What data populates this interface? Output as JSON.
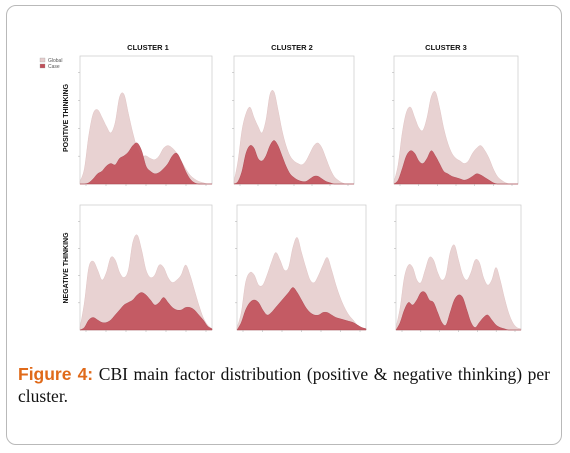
{
  "figure": {
    "caption_label": "Figure 4:",
    "caption_text": "CBI main factor distribution (positive & negative thinking) per cluster."
  },
  "chart_data": {
    "type": "area",
    "columns": [
      "CLUSTER 1",
      "CLUSTER 2",
      "CLUSTER 3"
    ],
    "rows": [
      "POSITIVE THINKING",
      "NEGATIVE THINKING"
    ],
    "legend": {
      "position": "top-left",
      "entries": [
        "Global",
        "Case"
      ]
    },
    "colors": {
      "global": "#e6cdcd",
      "case": "#c0505a",
      "grid": "#d0d0d0"
    },
    "x": [
      0,
      1,
      2,
      3,
      4,
      5,
      6,
      7,
      8,
      9,
      10,
      11,
      12,
      13,
      14,
      15,
      16,
      17,
      18,
      19,
      20,
      21,
      22,
      23,
      24,
      25,
      26,
      27,
      28,
      29,
      30
    ],
    "ylim": [
      0,
      100
    ],
    "panels": [
      {
        "row": "POSITIVE THINKING",
        "column": "CLUSTER 1",
        "global": [
          2,
          12,
          38,
          55,
          58,
          52,
          45,
          40,
          48,
          68,
          70,
          55,
          40,
          28,
          22,
          22,
          20,
          19,
          22,
          28,
          30,
          28,
          24,
          18,
          12,
          7,
          4,
          2,
          1,
          0,
          0
        ],
        "case": [
          0,
          0,
          1,
          4,
          8,
          10,
          14,
          16,
          15,
          20,
          22,
          25,
          30,
          32,
          26,
          14,
          10,
          8,
          9,
          12,
          16,
          22,
          24,
          18,
          10,
          4,
          1,
          0,
          0,
          0,
          0
        ]
      },
      {
        "row": "POSITIVE THINKING",
        "column": "CLUSTER 2",
        "global": [
          2,
          18,
          42,
          55,
          60,
          52,
          45,
          40,
          50,
          70,
          72,
          58,
          42,
          30,
          22,
          18,
          16,
          15,
          18,
          24,
          30,
          32,
          28,
          20,
          12,
          6,
          3,
          1,
          0,
          0,
          0
        ],
        "case": [
          0,
          2,
          10,
          24,
          30,
          28,
          20,
          18,
          22,
          30,
          34,
          30,
          22,
          14,
          8,
          5,
          3,
          2,
          2,
          4,
          6,
          6,
          4,
          2,
          1,
          0,
          0,
          0,
          0,
          0,
          0
        ]
      },
      {
        "row": "POSITIVE THINKING",
        "column": "CLUSTER 3",
        "global": [
          2,
          15,
          40,
          56,
          60,
          52,
          44,
          42,
          52,
          68,
          72,
          60,
          44,
          32,
          24,
          20,
          18,
          16,
          18,
          24,
          28,
          30,
          26,
          20,
          12,
          6,
          3,
          1,
          0,
          0,
          0
        ],
        "case": [
          0,
          3,
          12,
          22,
          26,
          24,
          18,
          16,
          20,
          26,
          22,
          16,
          10,
          8,
          6,
          5,
          4,
          3,
          4,
          6,
          8,
          7,
          5,
          3,
          1,
          0,
          0,
          0,
          0,
          0,
          0
        ]
      },
      {
        "row": "NEGATIVE THINKING",
        "column": "CLUSTER 1",
        "global": [
          2,
          22,
          50,
          55,
          48,
          40,
          46,
          58,
          56,
          46,
          42,
          48,
          70,
          76,
          64,
          48,
          42,
          44,
          52,
          50,
          42,
          38,
          40,
          44,
          52,
          44,
          32,
          20,
          10,
          4,
          1
        ],
        "case": [
          0,
          2,
          8,
          10,
          8,
          6,
          6,
          8,
          12,
          16,
          20,
          22,
          24,
          28,
          30,
          28,
          24,
          20,
          22,
          26,
          22,
          18,
          16,
          16,
          18,
          18,
          16,
          12,
          8,
          3,
          1
        ]
      },
      {
        "row": "NEGATIVE THINKING",
        "column": "CLUSTER 2",
        "global": [
          2,
          14,
          38,
          46,
          44,
          36,
          36,
          44,
          54,
          62,
          56,
          48,
          50,
          66,
          74,
          62,
          50,
          40,
          38,
          44,
          52,
          58,
          48,
          36,
          26,
          18,
          12,
          8,
          4,
          2,
          1
        ],
        "case": [
          0,
          6,
          16,
          22,
          24,
          22,
          16,
          12,
          14,
          18,
          22,
          26,
          30,
          34,
          30,
          24,
          18,
          14,
          12,
          12,
          14,
          14,
          12,
          10,
          9,
          8,
          7,
          6,
          4,
          2,
          1
        ]
      },
      {
        "row": "NEGATIVE THINKING",
        "column": "CLUSTER 3",
        "global": [
          2,
          18,
          42,
          52,
          50,
          40,
          38,
          48,
          58,
          56,
          46,
          40,
          44,
          62,
          68,
          56,
          44,
          40,
          46,
          56,
          54,
          42,
          36,
          40,
          50,
          40,
          26,
          14,
          6,
          2,
          1
        ],
        "case": [
          0,
          6,
          16,
          22,
          20,
          24,
          30,
          30,
          24,
          22,
          14,
          6,
          4,
          14,
          24,
          28,
          26,
          16,
          6,
          2,
          6,
          10,
          12,
          8,
          4,
          2,
          1,
          0,
          0,
          0,
          0
        ]
      }
    ]
  }
}
